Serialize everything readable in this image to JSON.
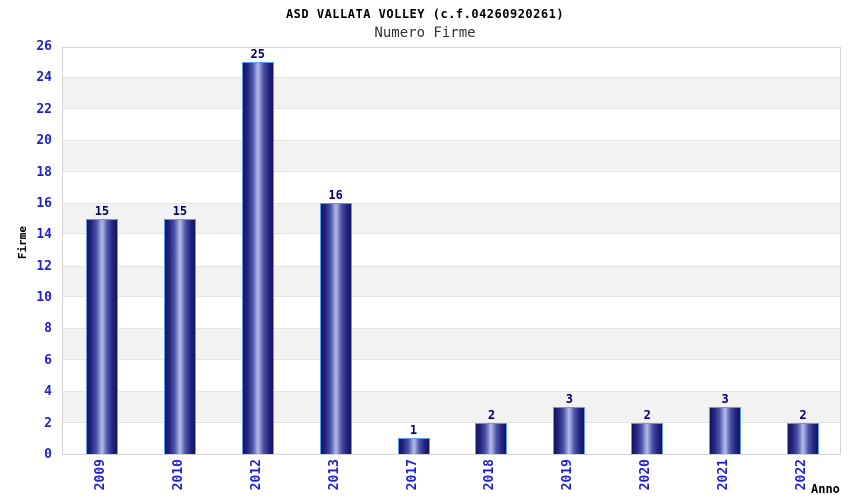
{
  "header": {
    "title": "ASD VALLATA VOLLEY (c.f.04260920261)",
    "subtitle": "Numero Firme"
  },
  "chart_data": {
    "type": "bar",
    "title": "ASD VALLATA VOLLEY (c.f.04260920261)",
    "subtitle": "Numero Firme",
    "categories": [
      "2009",
      "2010",
      "2012",
      "2013",
      "2017",
      "2018",
      "2019",
      "2020",
      "2021",
      "2022"
    ],
    "values": [
      15,
      15,
      25,
      16,
      1,
      2,
      3,
      2,
      3,
      2
    ],
    "xlabel": "Anno",
    "ylabel": "Firme",
    "ylim": [
      0,
      26
    ],
    "ytick_step": 2,
    "ytick_labels": [
      "0",
      "2",
      "4",
      "6",
      "8",
      "10",
      "12",
      "14",
      "16",
      "18",
      "20",
      "22",
      "24",
      "26"
    ],
    "grid": "alternating horizontal bands every 2 units, white and light gray",
    "legend": "none",
    "bar_value_labels_shown": true,
    "colors": {
      "bar_edge_dark": "#15155c",
      "bar_highlight": "#b6bde8",
      "bar_border": "#5b9df0",
      "axis_tick_text": "#2222cc",
      "bar_value_text": "#000066",
      "band_gray": "#f2f2f2",
      "plot_border": "#d3d3d3",
      "title_text": "#000000",
      "subtitle_text": "#333333"
    }
  }
}
